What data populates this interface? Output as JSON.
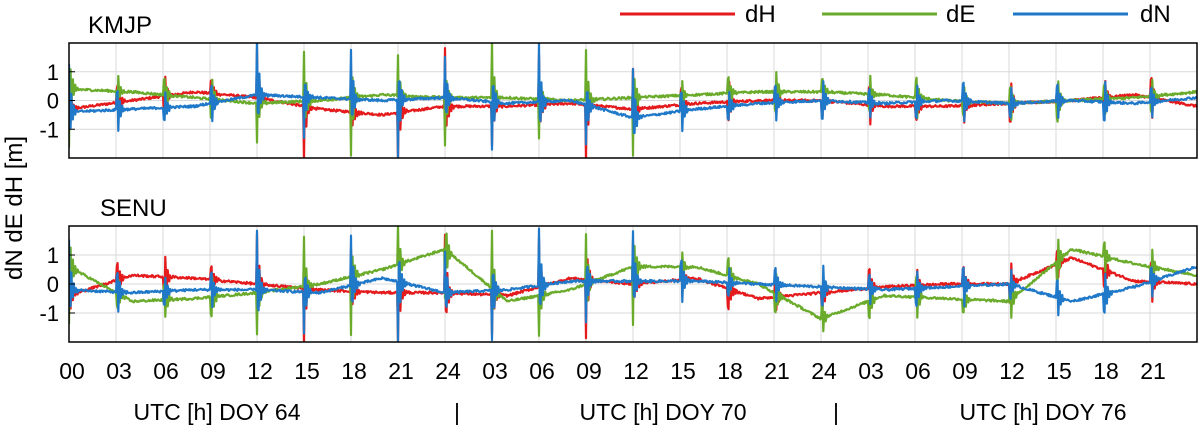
{
  "legend": {
    "position": "top-right",
    "entries": [
      {
        "label": "dH",
        "color": "#e41a1c"
      },
      {
        "label": "dE",
        "color": "#6aab2b"
      },
      {
        "label": "dN",
        "color": "#1f78c8"
      }
    ]
  },
  "y_axis_label": "dN dE dH [m]",
  "x_tick_labels": [
    "00",
    "03",
    "06",
    "09",
    "12",
    "15",
    "18",
    "21",
    "24",
    "03",
    "06",
    "09",
    "12",
    "15",
    "18",
    "21",
    "24",
    "03",
    "06",
    "09",
    "12",
    "15",
    "18",
    "21"
  ],
  "x_day_labels": [
    "UTC [h] DOY 64",
    "|",
    "UTC [h] DOY 70",
    "|",
    "UTC [h] DOY 76"
  ],
  "chart_data": [
    {
      "type": "line",
      "title": "KMJP",
      "xlabel": "UTC [h]",
      "ylabel": "dN dE dH [m]",
      "xlim": [
        0,
        72
      ],
      "ylim": [
        -2,
        2
      ],
      "yticks": [
        1,
        0,
        -1
      ],
      "grid": true,
      "reset_epochs_h": [
        0,
        3,
        6,
        9,
        12,
        15,
        18,
        21,
        24,
        27,
        30,
        33,
        36,
        39,
        42,
        45,
        48,
        51,
        54,
        57,
        60,
        63,
        66,
        69,
        72
      ],
      "series": [
        {
          "name": "dH",
          "color": "#e41a1c",
          "baseline_points": [
            [
              0,
              -0.3
            ],
            [
              4,
              0.0
            ],
            [
              8,
              0.3
            ],
            [
              12,
              0.1
            ],
            [
              16,
              -0.3
            ],
            [
              20,
              -0.5
            ],
            [
              24,
              -0.2
            ],
            [
              28,
              -0.2
            ],
            [
              32,
              -0.1
            ],
            [
              36,
              -0.3
            ],
            [
              40,
              -0.1
            ],
            [
              44,
              0.0
            ],
            [
              48,
              0.0
            ],
            [
              52,
              -0.2
            ],
            [
              56,
              -0.2
            ],
            [
              60,
              -0.1
            ],
            [
              64,
              0.0
            ],
            [
              68,
              0.2
            ],
            [
              72,
              -0.2
            ]
          ]
        },
        {
          "name": "dE",
          "color": "#6aab2b",
          "baseline_points": [
            [
              0,
              0.4
            ],
            [
              4,
              0.3
            ],
            [
              8,
              0.1
            ],
            [
              12,
              -0.1
            ],
            [
              16,
              0.0
            ],
            [
              20,
              0.2
            ],
            [
              24,
              0.1
            ],
            [
              28,
              0.1
            ],
            [
              32,
              0.0
            ],
            [
              36,
              0.1
            ],
            [
              40,
              0.2
            ],
            [
              44,
              0.3
            ],
            [
              48,
              0.3
            ],
            [
              52,
              0.2
            ],
            [
              56,
              0.0
            ],
            [
              60,
              -0.1
            ],
            [
              64,
              0.0
            ],
            [
              68,
              0.1
            ],
            [
              72,
              0.3
            ]
          ]
        },
        {
          "name": "dN",
          "color": "#1f78c8",
          "baseline_points": [
            [
              0,
              -0.4
            ],
            [
              4,
              -0.3
            ],
            [
              8,
              -0.2
            ],
            [
              12,
              0.2
            ],
            [
              16,
              0.1
            ],
            [
              20,
              0.0
            ],
            [
              24,
              0.1
            ],
            [
              28,
              -0.1
            ],
            [
              32,
              0.0
            ],
            [
              36,
              -0.6
            ],
            [
              40,
              -0.3
            ],
            [
              44,
              -0.1
            ],
            [
              48,
              0.0
            ],
            [
              52,
              -0.1
            ],
            [
              56,
              0.0
            ],
            [
              60,
              -0.1
            ],
            [
              64,
              0.0
            ],
            [
              68,
              -0.1
            ],
            [
              72,
              0.1
            ]
          ]
        }
      ]
    },
    {
      "type": "line",
      "title": "SENU",
      "xlabel": "UTC [h]",
      "ylabel": "dN dE dH [m]",
      "xlim": [
        0,
        72
      ],
      "ylim": [
        -2,
        2
      ],
      "yticks": [
        1,
        0,
        -1
      ],
      "grid": true,
      "reset_epochs_h": [
        0,
        3,
        6,
        9,
        12,
        15,
        18,
        21,
        24,
        27,
        30,
        33,
        36,
        39,
        42,
        45,
        48,
        51,
        54,
        57,
        60,
        63,
        66,
        69,
        72
      ],
      "series": [
        {
          "name": "dH",
          "color": "#e41a1c",
          "baseline_points": [
            [
              0,
              -0.4
            ],
            [
              4,
              0.3
            ],
            [
              8,
              0.2
            ],
            [
              12,
              0.0
            ],
            [
              16,
              -0.2
            ],
            [
              20,
              -0.3
            ],
            [
              24,
              -0.3
            ],
            [
              28,
              -0.4
            ],
            [
              32,
              0.2
            ],
            [
              36,
              0.0
            ],
            [
              40,
              0.2
            ],
            [
              44,
              -0.5
            ],
            [
              48,
              -0.3
            ],
            [
              52,
              -0.1
            ],
            [
              56,
              0.0
            ],
            [
              60,
              0.0
            ],
            [
              64,
              0.9
            ],
            [
              68,
              0.1
            ],
            [
              72,
              0.0
            ]
          ]
        },
        {
          "name": "dE",
          "color": "#6aab2b",
          "baseline_points": [
            [
              0,
              0.6
            ],
            [
              4,
              -0.6
            ],
            [
              8,
              -0.5
            ],
            [
              12,
              -0.3
            ],
            [
              16,
              0.0
            ],
            [
              20,
              0.5
            ],
            [
              24,
              1.2
            ],
            [
              28,
              -0.6
            ],
            [
              32,
              -0.2
            ],
            [
              36,
              0.6
            ],
            [
              40,
              0.6
            ],
            [
              44,
              0.0
            ],
            [
              48,
              -1.2
            ],
            [
              52,
              -0.4
            ],
            [
              56,
              -0.5
            ],
            [
              60,
              -0.6
            ],
            [
              64,
              1.2
            ],
            [
              68,
              0.7
            ],
            [
              72,
              0.3
            ]
          ]
        },
        {
          "name": "dN",
          "color": "#1f78c8",
          "baseline_points": [
            [
              0,
              -0.2
            ],
            [
              4,
              -0.3
            ],
            [
              8,
              -0.2
            ],
            [
              12,
              -0.2
            ],
            [
              16,
              -0.3
            ],
            [
              20,
              0.2
            ],
            [
              24,
              -0.3
            ],
            [
              28,
              -0.2
            ],
            [
              32,
              0.1
            ],
            [
              36,
              0.1
            ],
            [
              40,
              0.1
            ],
            [
              44,
              0.0
            ],
            [
              48,
              -0.1
            ],
            [
              52,
              -0.2
            ],
            [
              56,
              -0.1
            ],
            [
              60,
              0.0
            ],
            [
              64,
              -0.6
            ],
            [
              68,
              -0.1
            ],
            [
              72,
              0.6
            ]
          ]
        }
      ]
    }
  ]
}
